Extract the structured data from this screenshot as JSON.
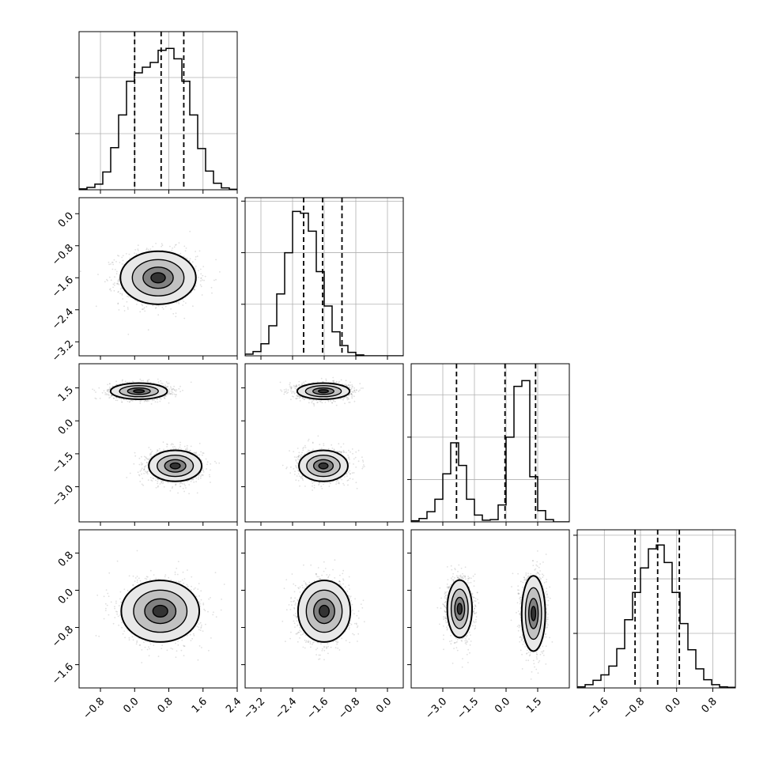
{
  "chart_data": {
    "type": "corner",
    "n_params": 4,
    "xlim": [
      [
        -1.3,
        2.4
      ],
      [
        -3.6,
        0.4
      ],
      [
        -4.5,
        3.0
      ],
      [
        -2.2,
        1.3
      ]
    ],
    "ylim_corner": [
      [
        null,
        null
      ],
      [
        -3.55,
        0.4
      ],
      [
        -4.6,
        2.6
      ],
      [
        -2.1,
        1.3
      ]
    ],
    "xticks": [
      [
        -0.8,
        0.0,
        0.8,
        1.6,
        2.4
      ],
      [
        -3.2,
        -2.4,
        -1.6,
        -0.8,
        0.0
      ],
      [
        -3.0,
        -1.5,
        0.0,
        1.5
      ],
      [
        -1.6,
        -0.8,
        0.0,
        0.8
      ]
    ],
    "xtick_labels": [
      [
        "−0.8",
        "0.0",
        "0.8",
        "1.6",
        "2.4"
      ],
      [
        "−3.2",
        "−2.4",
        "−1.6",
        "−0.8",
        "0.0"
      ],
      [
        "−3.0",
        "−1.5",
        "0.0",
        "1.5"
      ],
      [
        "−1.6",
        "−0.8",
        "0.0",
        "0.8"
      ]
    ],
    "yticks": [
      null,
      [
        0.0,
        -0.8,
        -1.6,
        -2.4,
        -3.2
      ],
      [
        1.5,
        0.0,
        -1.5,
        -3.0
      ],
      [
        0.8,
        0.0,
        -0.8,
        -1.6
      ]
    ],
    "ytick_labels": [
      null,
      [
        "0.0",
        "−0.8",
        "−1.6",
        "−2.4",
        "−3.2"
      ],
      [
        "1.5",
        "0.0",
        "−1.5",
        "−3.0"
      ],
      [
        "0.8",
        "0.0",
        "−0.8",
        "−1.6"
      ]
    ],
    "quantiles": [
      [
        0.0,
        0.62,
        1.15
      ],
      [
        -2.12,
        -1.64,
        -1.15
      ],
      [
        -2.35,
        -0.05,
        1.4
      ],
      [
        -0.92,
        -0.42,
        0.06
      ]
    ],
    "histograms": [
      {
        "edges_start": -1.3,
        "bin_width": 0.185,
        "counts": [
          2,
          5,
          12,
          38,
          90,
          160,
          232,
          250,
          262,
          272,
          298,
          302,
          280,
          232,
          160,
          88,
          40,
          14,
          4,
          1
        ]
      },
      {
        "edges_start": -3.6,
        "bin_width": 0.2,
        "counts": [
          2,
          5,
          14,
          35,
          72,
          120,
          168,
          166,
          145,
          98,
          58,
          28,
          12,
          4,
          1,
          0,
          0,
          0,
          0,
          0
        ]
      },
      {
        "edges_start": -4.5,
        "bin_width": 0.375,
        "counts": [
          2,
          6,
          18,
          40,
          85,
          140,
          100,
          40,
          12,
          3,
          4,
          30,
          150,
          240,
          250,
          80,
          20,
          4,
          0,
          0
        ]
      },
      {
        "edges_start": -2.2,
        "bin_width": 0.175,
        "counts": [
          2,
          6,
          14,
          24,
          40,
          72,
          125,
          175,
          220,
          255,
          262,
          230,
          175,
          118,
          70,
          35,
          15,
          6,
          2,
          1
        ]
      }
    ],
    "hist_ymax": [
      338,
      184,
      280,
      290
    ],
    "hist_gridlines": [
      [
        120,
        240
      ],
      [
        60,
        120,
        180
      ],
      [
        75,
        150,
        225
      ],
      [
        100,
        200,
        280
      ]
    ],
    "pairs": [
      {
        "row": 1,
        "col": 0,
        "clusters": [
          {
            "cx": 0.55,
            "cy": -1.6,
            "sx": 0.6,
            "sy": 0.45,
            "levels": [
              0.95,
              0.65,
              0.38,
              0.18
            ]
          }
        ]
      },
      {
        "row": 2,
        "col": 0,
        "clusters": [
          {
            "cx": 0.1,
            "cy": 1.35,
            "sx": 0.45,
            "sy": 0.25,
            "levels": [
              0.95,
              0.65,
              0.38,
              0.18
            ]
          },
          {
            "cx": 0.95,
            "cy": -2.05,
            "sx": 0.42,
            "sy": 0.48,
            "levels": [
              0.95,
              0.65,
              0.38,
              0.18
            ]
          }
        ]
      },
      {
        "row": 2,
        "col": 1,
        "clusters": [
          {
            "cx": -1.62,
            "cy": 1.35,
            "sx": 0.45,
            "sy": 0.25,
            "levels": [
              0.95,
              0.65,
              0.38,
              0.18
            ]
          },
          {
            "cx": -1.62,
            "cy": -2.05,
            "sx": 0.42,
            "sy": 0.48,
            "levels": [
              0.95,
              0.65,
              0.38,
              0.18
            ]
          }
        ]
      },
      {
        "row": 3,
        "col": 0,
        "clusters": [
          {
            "cx": 0.6,
            "cy": -0.45,
            "sx": 0.62,
            "sy": 0.45,
            "levels": [
              0.95,
              0.65,
              0.38,
              0.18
            ]
          }
        ]
      },
      {
        "row": 3,
        "col": 1,
        "clusters": [
          {
            "cx": -1.6,
            "cy": -0.45,
            "sx": 0.45,
            "sy": 0.45,
            "levels": [
              0.95,
              0.65,
              0.38,
              0.18
            ]
          }
        ]
      },
      {
        "row": 3,
        "col": 2,
        "clusters": [
          {
            "cx": -2.2,
            "cy": -0.4,
            "sx": 0.4,
            "sy": 0.42,
            "levels": [
              0.95,
              0.65,
              0.38,
              0.18
            ]
          },
          {
            "cx": 1.3,
            "cy": -0.5,
            "sx": 0.38,
            "sy": 0.55,
            "levels": [
              0.95,
              0.65,
              0.38,
              0.18
            ]
          }
        ]
      }
    ],
    "colors": {
      "line": "#000000",
      "grid": "#b0b0b0",
      "points": "#7f7f7f"
    }
  }
}
